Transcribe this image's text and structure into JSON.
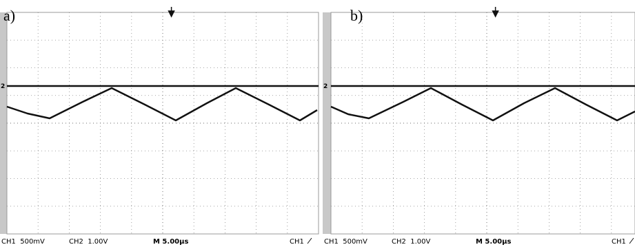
{
  "panels": [
    {
      "label": "a)",
      "channel_marker": "2",
      "status": {
        "ch1": "CH1  500mV",
        "ch2": "CH2  1.00V",
        "timebase": "M 5.00µs",
        "trigger": "CH1"
      }
    },
    {
      "label": "b)",
      "channel_marker": "2",
      "status": {
        "ch1": "CH1  500mV",
        "ch2": "CH2  1.00V",
        "timebase": "M 5.00µs",
        "trigger": "CH1"
      }
    }
  ]
}
